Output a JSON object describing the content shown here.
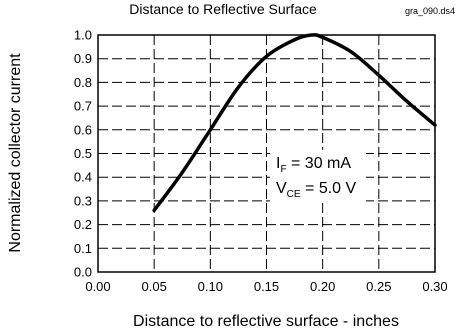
{
  "chart_data": {
    "type": "line",
    "title": "Distance to Reflective Surface",
    "code": "gra_090.ds4",
    "xlabel": "Distance to reflective surface - inches",
    "ylabel": "Normalized collector current",
    "xlim": [
      0.0,
      0.3
    ],
    "ylim": [
      0.0,
      1.0
    ],
    "xticks": [
      "0.00",
      "0.05",
      "0.10",
      "0.15",
      "0.20",
      "0.25",
      "0.30"
    ],
    "yticks": [
      "0.0",
      "0.1",
      "0.2",
      "0.3",
      "0.4",
      "0.5",
      "0.6",
      "0.7",
      "0.8",
      "0.9",
      "1.0"
    ],
    "grid": true,
    "grid_style": "dashed",
    "line_color": "#000000",
    "annotation": {
      "if_main": "I",
      "if_sub": "F",
      "if_value": " = 30 mA",
      "vce_main": "V",
      "vce_sub": "CE",
      "vce_value": " = 5.0 V"
    },
    "x": [
      0.05,
      0.075,
      0.1,
      0.125,
      0.15,
      0.175,
      0.19,
      0.2,
      0.225,
      0.25,
      0.275,
      0.3
    ],
    "values": [
      0.26,
      0.42,
      0.6,
      0.78,
      0.91,
      0.98,
      1.0,
      0.99,
      0.93,
      0.83,
      0.72,
      0.62
    ]
  }
}
